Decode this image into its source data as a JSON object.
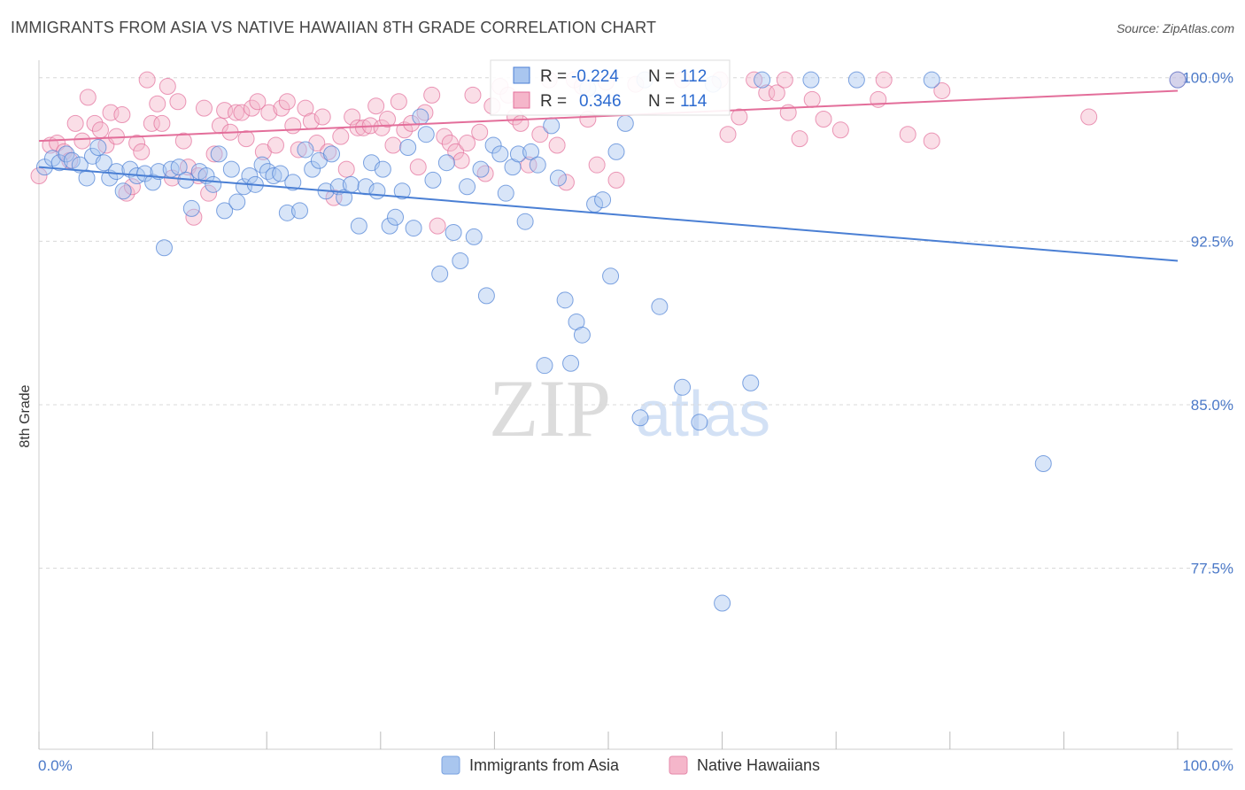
{
  "header": {
    "title": "IMMIGRANTS FROM ASIA VS NATIVE HAWAIIAN 8TH GRADE CORRELATION CHART",
    "source": "Source: ZipAtlas.com"
  },
  "watermark": {
    "zip": "ZIP",
    "atlas": "atlas"
  },
  "colors": {
    "blue": "#4a7fd4",
    "blue_fill": "#a9c6ef",
    "pink": "#e36e9a",
    "pink_fill": "#f5b6ca",
    "tick_text": "#4b79c8",
    "grid": "#d8d8d8"
  },
  "stats_box": {
    "rows": [
      {
        "r_label": "R =",
        "r_value": "-0.224",
        "n_label": "N =",
        "n_value": "112"
      },
      {
        "r_label": "R =",
        "r_value": "0.346",
        "n_label": "N =",
        "n_value": "114"
      }
    ]
  },
  "chart_data": {
    "type": "scatter",
    "title": "IMMIGRANTS FROM ASIA VS NATIVE HAWAIIAN 8TH GRADE CORRELATION CHART",
    "xlabel": "",
    "ylabel": "8th Grade",
    "xlim": [
      0,
      100
    ],
    "ylim": [
      69.2,
      100.8
    ],
    "x_tick_labels": [
      "0.0%",
      "100.0%"
    ],
    "y_ticks": [
      {
        "value": 100.0,
        "label": "100.0%"
      },
      {
        "value": 92.5,
        "label": "92.5%"
      },
      {
        "value": 85.0,
        "label": "85.0%"
      },
      {
        "value": 77.5,
        "label": "77.5%"
      }
    ],
    "grid": true,
    "legend_position": "bottom-center",
    "series": [
      {
        "name": "Immigrants from Asia",
        "color": "#4a7fd4",
        "r": -0.224,
        "n": 112,
        "trend": {
          "x": [
            0,
            100
          ],
          "y": [
            95.9,
            91.6
          ]
        },
        "points": [
          [
            0.5,
            95.9
          ],
          [
            1.2,
            96.3
          ],
          [
            1.8,
            96.1
          ],
          [
            2.4,
            96.5
          ],
          [
            2.9,
            96.2
          ],
          [
            3.6,
            96.0
          ],
          [
            4.2,
            95.4
          ],
          [
            4.7,
            96.4
          ],
          [
            5.2,
            96.8
          ],
          [
            5.7,
            96.1
          ],
          [
            6.2,
            95.4
          ],
          [
            6.8,
            95.7
          ],
          [
            7.4,
            94.8
          ],
          [
            8.0,
            95.8
          ],
          [
            8.6,
            95.5
          ],
          [
            9.3,
            95.6
          ],
          [
            10.0,
            95.2
          ],
          [
            10.5,
            95.7
          ],
          [
            11.0,
            92.2
          ],
          [
            11.6,
            95.8
          ],
          [
            12.3,
            95.9
          ],
          [
            12.9,
            95.3
          ],
          [
            13.4,
            94.0
          ],
          [
            14.1,
            95.7
          ],
          [
            14.7,
            95.5
          ],
          [
            15.3,
            95.1
          ],
          [
            15.8,
            96.5
          ],
          [
            16.3,
            93.9
          ],
          [
            16.9,
            95.8
          ],
          [
            17.4,
            94.3
          ],
          [
            18.0,
            95.0
          ],
          [
            18.5,
            95.5
          ],
          [
            19.0,
            95.1
          ],
          [
            19.6,
            96.0
          ],
          [
            20.1,
            95.7
          ],
          [
            20.6,
            95.5
          ],
          [
            21.2,
            95.6
          ],
          [
            21.8,
            93.8
          ],
          [
            22.3,
            95.2
          ],
          [
            22.9,
            93.9
          ],
          [
            23.4,
            96.7
          ],
          [
            24.0,
            95.8
          ],
          [
            24.6,
            96.2
          ],
          [
            25.2,
            94.8
          ],
          [
            25.7,
            96.5
          ],
          [
            26.3,
            95.0
          ],
          [
            26.8,
            94.5
          ],
          [
            27.4,
            95.1
          ],
          [
            28.1,
            93.2
          ],
          [
            28.7,
            95.0
          ],
          [
            29.2,
            96.1
          ],
          [
            29.7,
            94.8
          ],
          [
            30.2,
            95.8
          ],
          [
            30.8,
            93.2
          ],
          [
            31.3,
            93.6
          ],
          [
            31.9,
            94.8
          ],
          [
            32.4,
            96.8
          ],
          [
            32.9,
            93.1
          ],
          [
            33.5,
            98.2
          ],
          [
            34.0,
            97.4
          ],
          [
            34.6,
            95.3
          ],
          [
            35.2,
            91.0
          ],
          [
            35.8,
            96.1
          ],
          [
            36.4,
            92.9
          ],
          [
            37.0,
            91.6
          ],
          [
            37.6,
            95.0
          ],
          [
            38.2,
            92.7
          ],
          [
            38.8,
            95.8
          ],
          [
            39.3,
            90.0
          ],
          [
            39.9,
            96.9
          ],
          [
            40.5,
            96.5
          ],
          [
            41.0,
            94.7
          ],
          [
            41.6,
            95.9
          ],
          [
            42.1,
            96.5
          ],
          [
            42.7,
            93.4
          ],
          [
            43.2,
            96.6
          ],
          [
            43.8,
            96.0
          ],
          [
            44.4,
            86.8
          ],
          [
            45.0,
            97.8
          ],
          [
            45.6,
            95.4
          ],
          [
            46.2,
            89.8
          ],
          [
            46.7,
            86.9
          ],
          [
            47.2,
            88.8
          ],
          [
            47.7,
            88.2
          ],
          [
            48.2,
            99.5
          ],
          [
            48.8,
            94.2
          ],
          [
            49.5,
            94.4
          ],
          [
            50.2,
            90.9
          ],
          [
            50.7,
            96.6
          ],
          [
            51.5,
            97.9
          ],
          [
            52.8,
            84.4
          ],
          [
            53.2,
            99.9
          ],
          [
            54.5,
            89.5
          ],
          [
            56.5,
            85.8
          ],
          [
            58.0,
            84.2
          ],
          [
            59.2,
            99.7
          ],
          [
            60.0,
            75.9
          ],
          [
            62.5,
            86.0
          ],
          [
            63.5,
            99.9
          ],
          [
            67.8,
            99.9
          ],
          [
            71.8,
            99.9
          ],
          [
            78.4,
            99.9
          ],
          [
            88.2,
            82.3
          ],
          [
            100.0,
            99.9
          ]
        ]
      },
      {
        "name": "Native Hawaiians",
        "color": "#e36e9a",
        "r": 0.346,
        "n": 114,
        "trend": {
          "x": [
            0,
            100
          ],
          "y": [
            97.1,
            99.4
          ]
        },
        "points": [
          [
            0.0,
            95.5
          ],
          [
            1.0,
            96.9
          ],
          [
            1.6,
            97.0
          ],
          [
            2.2,
            96.6
          ],
          [
            2.7,
            96.2
          ],
          [
            3.2,
            97.9
          ],
          [
            3.8,
            97.1
          ],
          [
            4.3,
            99.1
          ],
          [
            4.9,
            97.9
          ],
          [
            5.4,
            97.6
          ],
          [
            5.9,
            96.9
          ],
          [
            6.3,
            98.4
          ],
          [
            6.8,
            97.3
          ],
          [
            7.3,
            98.3
          ],
          [
            7.7,
            94.7
          ],
          [
            8.2,
            95.0
          ],
          [
            8.6,
            97.0
          ],
          [
            9.0,
            96.6
          ],
          [
            9.5,
            99.9
          ],
          [
            9.9,
            97.9
          ],
          [
            10.4,
            98.8
          ],
          [
            10.8,
            97.9
          ],
          [
            11.3,
            99.6
          ],
          [
            11.7,
            95.4
          ],
          [
            12.2,
            98.9
          ],
          [
            12.7,
            97.1
          ],
          [
            13.1,
            95.9
          ],
          [
            13.6,
            93.6
          ],
          [
            14.0,
            95.5
          ],
          [
            14.5,
            98.6
          ],
          [
            14.9,
            94.7
          ],
          [
            15.4,
            96.5
          ],
          [
            15.9,
            97.8
          ],
          [
            16.3,
            98.5
          ],
          [
            16.8,
            97.5
          ],
          [
            17.3,
            98.4
          ],
          [
            17.8,
            98.4
          ],
          [
            18.2,
            97.2
          ],
          [
            18.7,
            98.6
          ],
          [
            19.2,
            98.9
          ],
          [
            19.7,
            96.6
          ],
          [
            20.2,
            98.4
          ],
          [
            20.8,
            96.9
          ],
          [
            21.3,
            98.6
          ],
          [
            21.8,
            98.9
          ],
          [
            22.3,
            97.8
          ],
          [
            22.8,
            96.7
          ],
          [
            23.4,
            98.6
          ],
          [
            23.9,
            98.0
          ],
          [
            24.4,
            97.0
          ],
          [
            24.9,
            98.2
          ],
          [
            25.4,
            96.6
          ],
          [
            25.9,
            94.5
          ],
          [
            26.5,
            97.3
          ],
          [
            27.0,
            95.8
          ],
          [
            27.5,
            98.2
          ],
          [
            28.0,
            97.7
          ],
          [
            28.5,
            97.7
          ],
          [
            29.1,
            97.8
          ],
          [
            29.6,
            98.7
          ],
          [
            30.1,
            97.7
          ],
          [
            30.6,
            98.1
          ],
          [
            31.1,
            96.9
          ],
          [
            31.6,
            98.9
          ],
          [
            32.1,
            97.6
          ],
          [
            32.7,
            97.9
          ],
          [
            33.3,
            95.9
          ],
          [
            33.9,
            98.4
          ],
          [
            34.5,
            99.2
          ],
          [
            35.0,
            93.2
          ],
          [
            35.6,
            97.3
          ],
          [
            36.1,
            97.0
          ],
          [
            36.6,
            96.6
          ],
          [
            37.1,
            96.2
          ],
          [
            37.6,
            97.0
          ],
          [
            38.1,
            99.2
          ],
          [
            38.7,
            97.5
          ],
          [
            39.2,
            95.6
          ],
          [
            39.8,
            98.7
          ],
          [
            40.5,
            99.6
          ],
          [
            41.2,
            99.2
          ],
          [
            41.8,
            98.2
          ],
          [
            42.3,
            97.9
          ],
          [
            43.0,
            96.0
          ],
          [
            44.0,
            97.4
          ],
          [
            44.8,
            99.9
          ],
          [
            45.5,
            96.9
          ],
          [
            46.3,
            95.2
          ],
          [
            47.0,
            99.9
          ],
          [
            47.7,
            99.6
          ],
          [
            48.2,
            98.1
          ],
          [
            49.0,
            96.0
          ],
          [
            49.8,
            99.8
          ],
          [
            50.7,
            95.3
          ],
          [
            52.4,
            99.7
          ],
          [
            56.5,
            99.9
          ],
          [
            59.8,
            99.9
          ],
          [
            60.5,
            97.4
          ],
          [
            61.5,
            98.2
          ],
          [
            62.8,
            99.9
          ],
          [
            63.9,
            99.3
          ],
          [
            64.8,
            99.3
          ],
          [
            65.5,
            99.9
          ],
          [
            65.8,
            98.4
          ],
          [
            66.8,
            97.2
          ],
          [
            67.9,
            99.0
          ],
          [
            68.9,
            98.1
          ],
          [
            70.4,
            97.6
          ],
          [
            73.7,
            99.0
          ],
          [
            74.2,
            99.9
          ],
          [
            76.3,
            97.4
          ],
          [
            78.4,
            97.1
          ],
          [
            79.3,
            99.4
          ],
          [
            92.2,
            98.2
          ],
          [
            100.0,
            99.9
          ]
        ]
      }
    ]
  }
}
